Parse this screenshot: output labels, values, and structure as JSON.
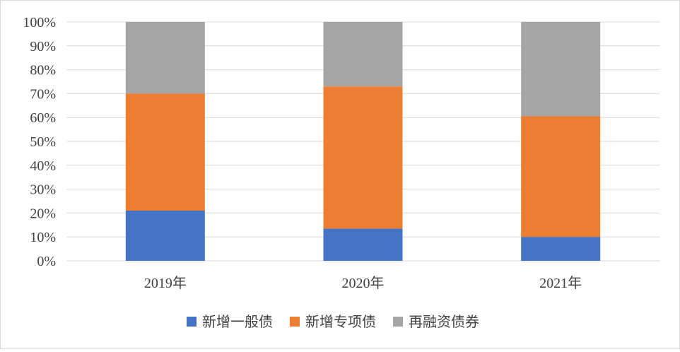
{
  "chart_data": {
    "type": "bar",
    "stacked": true,
    "normalized_percent": true,
    "categories": [
      "2019年",
      "2020年",
      "2021年"
    ],
    "series": [
      {
        "name": "新增一般债",
        "values": [
          21,
          13.5,
          10
        ],
        "color": "#4472C4"
      },
      {
        "name": "新增专项债",
        "values": [
          49,
          59.5,
          50.5
        ],
        "color": "#ED7D31"
      },
      {
        "name": "再融资债券",
        "values": [
          30,
          27,
          39.5
        ],
        "color": "#A5A5A5"
      }
    ],
    "ylim": [
      0,
      100
    ],
    "yticks": [
      "0%",
      "10%",
      "20%",
      "30%",
      "40%",
      "50%",
      "60%",
      "70%",
      "80%",
      "90%",
      "100%"
    ],
    "grid": true,
    "legend_position": "bottom"
  }
}
